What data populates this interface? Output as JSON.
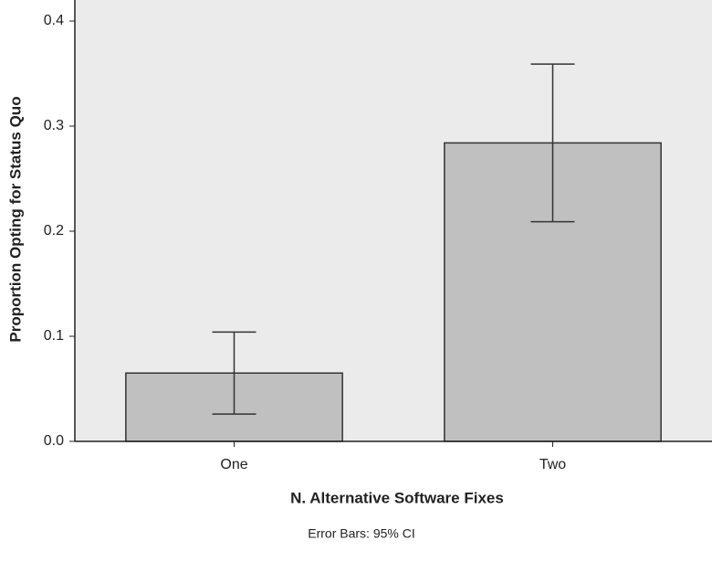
{
  "chart_data": {
    "type": "bar",
    "x_label": "N. Alternative Software Fixes",
    "y_label": "Proportion Opting for Status Quo",
    "note": "Error Bars: 95% CI",
    "categories": [
      "One",
      "Two"
    ],
    "values": [
      0.065,
      0.284
    ],
    "ci_lower": [
      0.026,
      0.209
    ],
    "ci_upper": [
      0.104,
      0.359
    ],
    "color": "#c0c0c0",
    "ylim": [
      0,
      0.42
    ],
    "yticks": [
      {
        "value": 0,
        "label": "0.0"
      },
      0.1,
      0.2,
      0.3,
      0.4
    ],
    "grid": false
  }
}
